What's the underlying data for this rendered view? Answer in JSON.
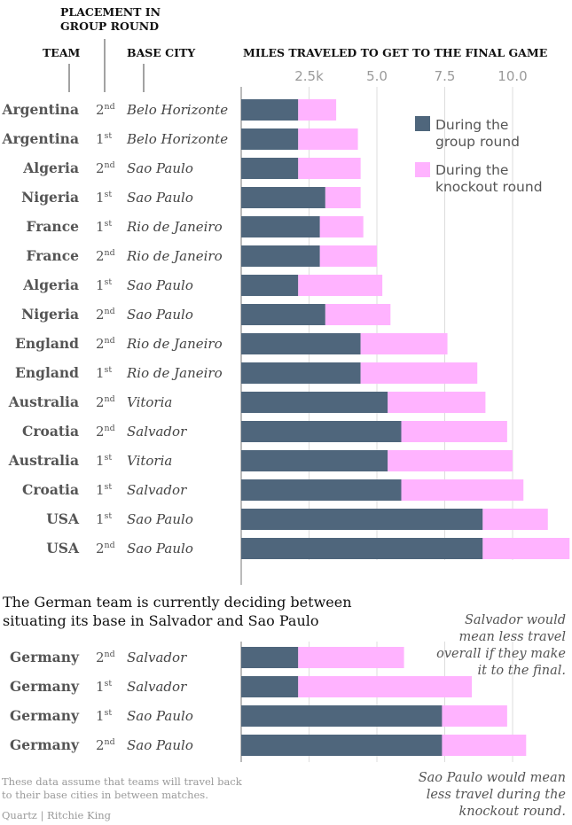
{
  "headers": {
    "placement": [
      "PLACEMENT IN",
      "GROUP ROUND"
    ],
    "team": "TEAM",
    "base_city": "BASE CITY",
    "miles": "MILES TRAVELED TO GET TO THE FINAL GAME"
  },
  "legend": {
    "group": [
      "During the",
      "group round"
    ],
    "knockout": [
      "During the",
      "knockout round"
    ]
  },
  "subtitle": [
    "The German team is currently deciding between",
    "situating its base in Salvador and Sao Paulo"
  ],
  "annotations": {
    "salvador": [
      "Salvador would",
      "mean less travel",
      "overall if they make",
      "it to the final."
    ],
    "saopaulo": [
      "Sao Paulo would mean",
      "less travel during the",
      "knockout round."
    ]
  },
  "note": [
    "These data assume that teams will travel back",
    "to their base cities in between matches."
  ],
  "credit": "Quartz | Ritchie King",
  "colors": {
    "group": "#4f667c",
    "knockout": "#ffb3ff",
    "grid": "#dddddd"
  },
  "chart_data": {
    "type": "bar",
    "orientation": "horizontal",
    "stacked": true,
    "unit": "thousand miles",
    "xlim": [
      0,
      12
    ],
    "ticks": [
      2.5,
      5.0,
      7.5,
      10.0
    ],
    "tick_labels": [
      "2.5k",
      "5.0",
      "7.5",
      "10.0"
    ],
    "series_names": [
      "During the group round",
      "During the knockout round"
    ],
    "rows": [
      {
        "team": "Argentina",
        "place": "2",
        "suffix": "nd",
        "city": "Belo Horizonte",
        "group": 2.1,
        "knockout": 1.4
      },
      {
        "team": "Argentina",
        "place": "1",
        "suffix": "st",
        "city": "Belo Horizonte",
        "group": 2.1,
        "knockout": 2.2
      },
      {
        "team": "Algeria",
        "place": "2",
        "suffix": "nd",
        "city": "Sao Paulo",
        "group": 2.1,
        "knockout": 2.3
      },
      {
        "team": "Nigeria",
        "place": "1",
        "suffix": "st",
        "city": "Sao Paulo",
        "group": 3.1,
        "knockout": 1.3
      },
      {
        "team": "France",
        "place": "1",
        "suffix": "st",
        "city": "Rio de Janeiro",
        "group": 2.9,
        "knockout": 1.6
      },
      {
        "team": "France",
        "place": "2",
        "suffix": "nd",
        "city": "Rio de Janeiro",
        "group": 2.9,
        "knockout": 2.1
      },
      {
        "team": "Algeria",
        "place": "1",
        "suffix": "st",
        "city": "Sao Paulo",
        "group": 2.1,
        "knockout": 3.1
      },
      {
        "team": "Nigeria",
        "place": "2",
        "suffix": "nd",
        "city": "Sao Paulo",
        "group": 3.1,
        "knockout": 2.4
      },
      {
        "team": "England",
        "place": "2",
        "suffix": "nd",
        "city": "Rio de Janeiro",
        "group": 4.4,
        "knockout": 3.2
      },
      {
        "team": "England",
        "place": "1",
        "suffix": "st",
        "city": "Rio de Janeiro",
        "group": 4.4,
        "knockout": 4.3
      },
      {
        "team": "Australia",
        "place": "2",
        "suffix": "nd",
        "city": "Vitoria",
        "group": 5.4,
        "knockout": 3.6
      },
      {
        "team": "Croatia",
        "place": "2",
        "suffix": "nd",
        "city": "Salvador",
        "group": 5.9,
        "knockout": 3.9
      },
      {
        "team": "Australia",
        "place": "1",
        "suffix": "st",
        "city": "Vitoria",
        "group": 5.4,
        "knockout": 4.6
      },
      {
        "team": "Croatia",
        "place": "1",
        "suffix": "st",
        "city": "Salvador",
        "group": 5.9,
        "knockout": 4.5
      },
      {
        "team": "USA",
        "place": "1",
        "suffix": "st",
        "city": "Sao Paulo",
        "group": 8.9,
        "knockout": 2.4
      },
      {
        "team": "USA",
        "place": "2",
        "suffix": "nd",
        "city": "Sao Paulo",
        "group": 8.9,
        "knockout": 3.2
      }
    ],
    "germany_rows": [
      {
        "team": "Germany",
        "place": "2",
        "suffix": "nd",
        "city": "Salvador",
        "group": 2.1,
        "knockout": 3.9
      },
      {
        "team": "Germany",
        "place": "1",
        "suffix": "st",
        "city": "Salvador",
        "group": 2.1,
        "knockout": 6.4
      },
      {
        "team": "Germany",
        "place": "1",
        "suffix": "st",
        "city": "Sao Paulo",
        "group": 7.4,
        "knockout": 2.4
      },
      {
        "team": "Germany",
        "place": "2",
        "suffix": "nd",
        "city": "Sao Paulo",
        "group": 7.4,
        "knockout": 3.1
      }
    ]
  }
}
